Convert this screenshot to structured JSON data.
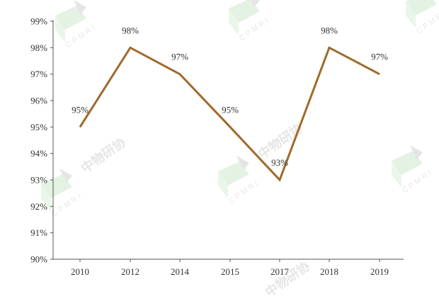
{
  "chart_data": {
    "type": "line",
    "title": "",
    "xlabel": "",
    "ylabel": "",
    "categories": [
      "2010",
      "2012",
      "2014",
      "2015",
      "2017",
      "2018",
      "2019"
    ],
    "series": [
      {
        "values": [
          95,
          98,
          97,
          95,
          93,
          98,
          97
        ],
        "color": "#A0692C",
        "data_labels": [
          "95%",
          "98%",
          "97%",
          "95%",
          "93%",
          "98%",
          "97%"
        ]
      }
    ],
    "ylim": [
      90,
      99
    ],
    "y_ticks": [
      90,
      91,
      92,
      93,
      94,
      95,
      96,
      97,
      98,
      99
    ],
    "y_tick_labels": [
      "90%",
      "91%",
      "92%",
      "93%",
      "94%",
      "95%",
      "96%",
      "97%",
      "98%",
      "99%"
    ],
    "grid": false,
    "legend": "none"
  },
  "watermark": {
    "text": "CPMRI",
    "chinese_text": "中物研协"
  }
}
